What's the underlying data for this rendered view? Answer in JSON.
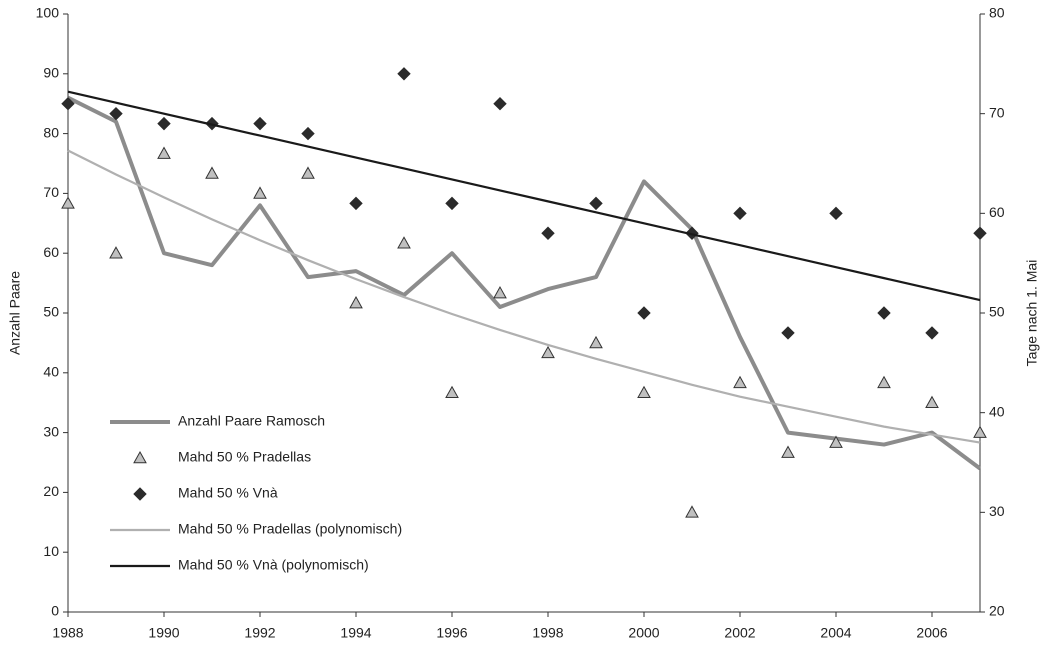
{
  "chart_data": {
    "type": "line",
    "y_label": "Anzahl Paare",
    "y2_label": "Tage nach 1. Mai",
    "x": [
      1988,
      1989,
      1990,
      1991,
      1992,
      1993,
      1994,
      1995,
      1996,
      1997,
      1998,
      1999,
      2000,
      2001,
      2002,
      2003,
      2004,
      2005,
      2006,
      2007
    ],
    "xlim": [
      1988,
      2007
    ],
    "xticks": [
      1988,
      1990,
      1992,
      1994,
      1996,
      1998,
      2000,
      2002,
      2004,
      2006
    ],
    "ylim": [
      0,
      100
    ],
    "yticks": [
      0,
      10,
      20,
      30,
      40,
      50,
      60,
      70,
      80,
      90,
      100
    ],
    "y2lim": [
      20,
      80
    ],
    "y2ticks": [
      20,
      30,
      40,
      50,
      60,
      70,
      80
    ],
    "grid": false,
    "series": [
      {
        "name": "Anzahl Paare Ramosch",
        "color": "#8c8c8c",
        "marker": "line",
        "axis": "y",
        "values": [
          86,
          82,
          60,
          58,
          68,
          56,
          57,
          53,
          60,
          51,
          54,
          56,
          72,
          64,
          46,
          30,
          29,
          28,
          30,
          24
        ]
      },
      {
        "name": "Mahd 50 % Pradellas",
        "color": "#c0c0c0",
        "marker": "triangle",
        "axis": "y2",
        "values": [
          61,
          56,
          66,
          64,
          62,
          64,
          51,
          57,
          42,
          52,
          46,
          47,
          42,
          30,
          43,
          36,
          37,
          43,
          41,
          38
        ]
      },
      {
        "name": "Mahd 50 % Vnà",
        "color": "#2b2b2b",
        "marker": "diamond",
        "axis": "y2",
        "values": [
          71,
          70,
          69,
          69,
          69,
          68,
          61,
          74,
          61,
          71,
          58,
          61,
          50,
          58,
          60,
          48,
          60,
          50,
          48,
          58
        ]
      },
      {
        "name": "Mahd 50 % Pradellas (polynomisch)",
        "color": "#b0b0b0",
        "marker": "line",
        "axis": "y2",
        "values": [
          66.3,
          63.9,
          61.6,
          59.4,
          57.3,
          55.3,
          53.4,
          51.6,
          49.9,
          48.3,
          46.8,
          45.4,
          44.1,
          42.8,
          41.6,
          40.6,
          39.6,
          38.6,
          37.8,
          37.0
        ]
      },
      {
        "name": "Mahd 50 % Vnà (polynomisch)",
        "color": "#1a1a1a",
        "marker": "line",
        "axis": "y2",
        "values": [
          72.2,
          71.1,
          70.0,
          68.9,
          67.8,
          66.7,
          65.6,
          64.5,
          63.4,
          62.3,
          61.2,
          60.1,
          59.0,
          57.9,
          56.8,
          55.7,
          54.6,
          53.5,
          52.4,
          51.3
        ]
      }
    ]
  }
}
